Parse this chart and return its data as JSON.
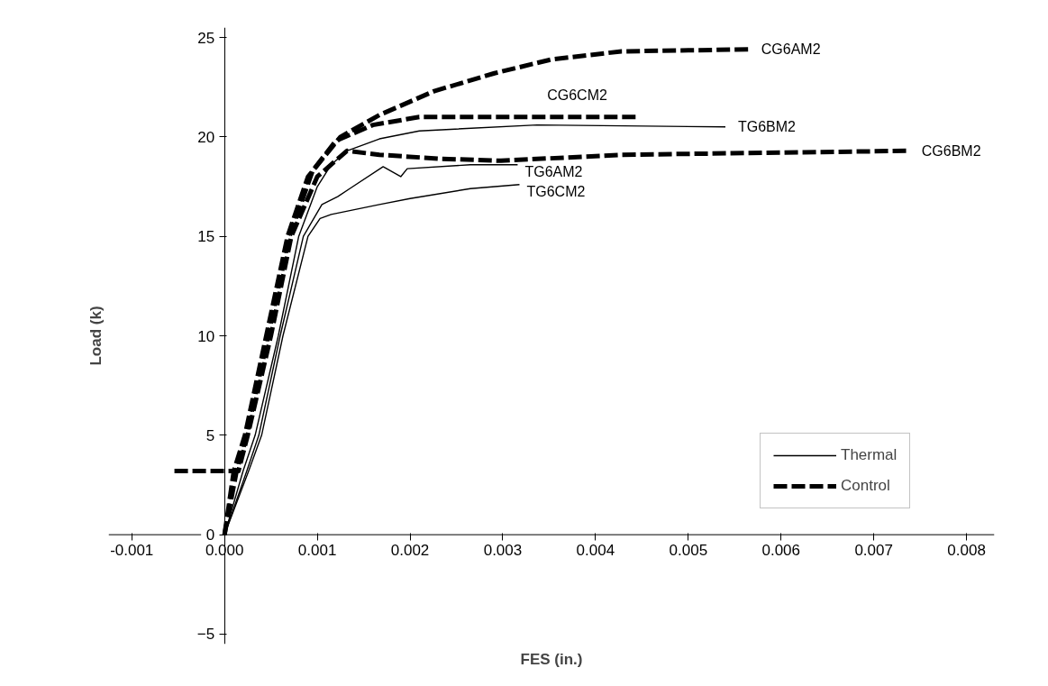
{
  "chart_data": {
    "type": "line",
    "xlabel": "FES (in.)",
    "ylabel": "Load (k)",
    "xlim": [
      -0.00125,
      0.0083
    ],
    "ylim": [
      -5.5,
      25.5
    ],
    "xticks": [
      -0.001,
      {
        "value": 0.0,
        "label": "0.000"
      },
      0.001,
      0.002,
      0.003,
      0.004,
      0.005,
      0.006,
      0.007,
      0.008
    ],
    "yticks": [
      -5,
      0,
      5,
      10,
      15,
      20,
      25
    ],
    "grid": false,
    "legend": "bottom right",
    "marker": "none",
    "series": [
      {
        "name": "Thermal",
        "color": "#000000",
        "line_style": "solid",
        "x": [
          0,
          0.0002,
          0.00033,
          0.00058,
          0.0008,
          0.001,
          0.00115,
          0.00132,
          0.00167,
          0.0021,
          0.00337,
          0.0054
        ],
        "values": [
          0,
          3.2,
          5,
          10,
          15,
          17.5,
          18.6,
          19.3,
          19.9,
          20.3,
          20.6,
          20.5
        ]
      },
      {
        "color": "#000000",
        "line_style": "solid",
        "x": [
          0,
          0.00024,
          0.00037,
          0.0006,
          0.00085,
          0.00105,
          0.00122,
          0.00135,
          0.00171,
          0.0019,
          0.00197,
          0.00265,
          0.00316
        ],
        "values": [
          0,
          3.2,
          5,
          10,
          15,
          16.6,
          17.0,
          17.4,
          18.5,
          18.0,
          18.4,
          18.6,
          18.6
        ]
      },
      {
        "color": "#000000",
        "line_style": "solid",
        "x": [
          0,
          0.00026,
          0.0004,
          0.00063,
          0.0009,
          0.00103,
          0.00115,
          0.00167,
          0.002,
          0.00265,
          0.00318
        ],
        "values": [
          0,
          3.2,
          5,
          10,
          15,
          15.9,
          16.1,
          16.6,
          16.9,
          17.4,
          17.6
        ]
      },
      {
        "name": "Control",
        "color": "#000000",
        "line_style": "dashed",
        "x": [
          0,
          0.0001,
          0.00022,
          0.00045,
          0.00068,
          0.0009,
          0.00125,
          0.00167,
          0.00226,
          0.00291,
          0.00353,
          0.00428,
          0.00565
        ],
        "values": [
          0,
          3.2,
          5,
          10,
          15,
          18,
          20,
          21.1,
          22.3,
          23.2,
          23.9,
          24.3,
          24.4
        ]
      },
      {
        "color": "#000000",
        "line_style": "dashed",
        "x": [
          0,
          0.00013,
          0.00024,
          0.00047,
          0.0007,
          0.00095,
          0.0012,
          0.0016,
          0.0021,
          0.00445
        ],
        "values": [
          0,
          3.2,
          5,
          10,
          15,
          18.3,
          19.8,
          20.6,
          21.0,
          21.0
        ]
      },
      {
        "color": "#000000",
        "line_style": "dashed",
        "x": [
          -0.00054,
          6e-05,
          0.00015,
          0.00025,
          0.0005,
          0.00072,
          0.001,
          0.00132,
          0.00167,
          0.00233,
          0.00298,
          0.00428,
          0.00738
        ],
        "values": [
          3.2,
          3.2,
          3.2,
          5,
          10,
          15,
          18,
          19.3,
          19.1,
          18.9,
          18.8,
          19.1,
          19.3
        ]
      }
    ],
    "annotations": [
      {
        "text": "CG6AM2",
        "x": 0.00565,
        "y": 24.4
      },
      {
        "text": "CG6CM2",
        "x": 0.00445,
        "y": 21.0
      },
      {
        "text": "TG6BM2",
        "x": 0.0054,
        "y": 20.5
      },
      {
        "text": "CG6BM2",
        "x": 0.00738,
        "y": 19.3
      },
      {
        "text": "TG6AM2",
        "x": 0.00316,
        "y": 18.6
      },
      {
        "text": "TG6CM2",
        "x": 0.00318,
        "y": 17.6
      }
    ]
  }
}
